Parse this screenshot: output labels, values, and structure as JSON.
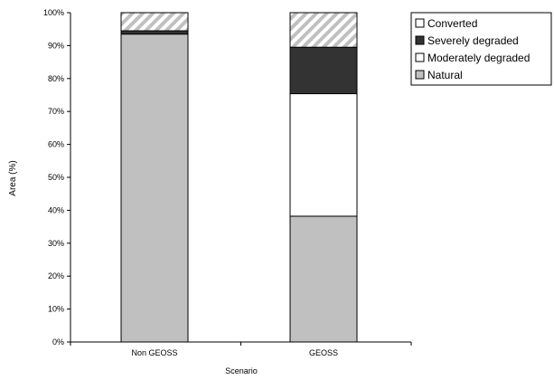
{
  "chart_data": {
    "type": "bar",
    "stacked": true,
    "categories": [
      "Non GEOSS",
      "GEOSS"
    ],
    "series": [
      {
        "name": "Natural",
        "values": [
          93.5,
          38.2
        ],
        "color": "#c0c0c0",
        "pattern": "solid"
      },
      {
        "name": "Moderately degraded",
        "values": [
          0.0,
          37.2
        ],
        "color": "#ffffff",
        "pattern": "solid"
      },
      {
        "name": "Severely degraded",
        "values": [
          1.0,
          14.1
        ],
        "color": "#333333",
        "pattern": "solid"
      },
      {
        "name": "Converted",
        "values": [
          5.5,
          10.5
        ],
        "color": "#c0c0c0",
        "pattern": "diagonal-stripes"
      }
    ],
    "legend_order": [
      "Converted",
      "Severely degraded",
      "Moderately degraded",
      "Natural"
    ],
    "xlabel": "Scenario",
    "ylabel": "Area (%)",
    "ylim": [
      0,
      100
    ],
    "ytick_step": 10,
    "ytick_labels": [
      "0%",
      "10%",
      "20%",
      "30%",
      "40%",
      "50%",
      "60%",
      "70%",
      "80%",
      "90%",
      "100%"
    ],
    "legend_position": "top-right",
    "grid": false
  }
}
